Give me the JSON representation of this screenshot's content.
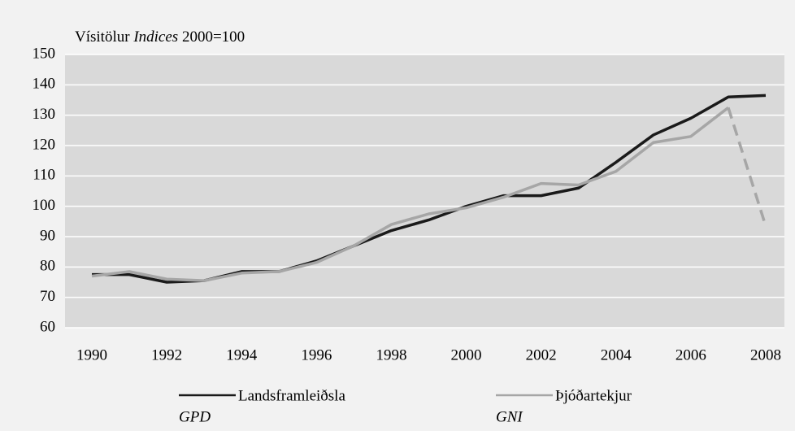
{
  "chart_data": {
    "type": "line",
    "y_axis_label": "Vísitölur",
    "y_axis_label_en": "Indices",
    "index_base": "2000=100",
    "categories": [
      "1990",
      null,
      "1992",
      null,
      "1994",
      null,
      "1996",
      null,
      "1998",
      null,
      "2000",
      null,
      "2002",
      null,
      "2004",
      null,
      "2006",
      null,
      "2008"
    ],
    "series": [
      {
        "name": "Landsframleiðsla",
        "name_en": "GPD",
        "color": "#1a1a1a",
        "values": [
          77.5,
          77.5,
          75,
          75.5,
          78.5,
          78.5,
          82,
          87,
          92,
          95.5,
          100,
          103.5,
          103.5,
          106,
          114.5,
          123.5,
          129,
          136,
          136.5
        ]
      },
      {
        "name": "Þjóðartekjur",
        "name_en": "GNI",
        "color": "#a6a6a6",
        "dash_last_segment": true,
        "values": [
          77,
          78.5,
          76,
          75.5,
          78,
          78.5,
          81.5,
          87,
          94,
          97.5,
          99.5,
          103,
          107.5,
          107,
          111.5,
          121,
          123,
          132.5,
          93.5
        ]
      }
    ],
    "ylim": [
      60,
      150
    ],
    "yticks": [
      60,
      70,
      80,
      90,
      100,
      110,
      120,
      130,
      140,
      150
    ],
    "grid": true
  }
}
